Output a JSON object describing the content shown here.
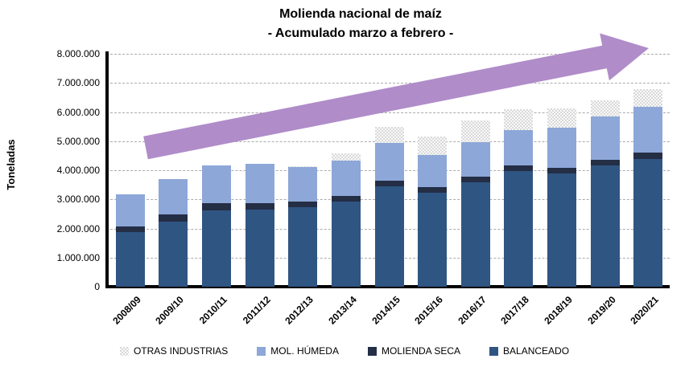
{
  "title": {
    "line1": "Molienda nacional de maíz",
    "line2": "- Acumulado marzo a febrero -"
  },
  "axis": {
    "y_label": "Toneladas",
    "yticks": [
      {
        "value": 0,
        "label": "0"
      },
      {
        "value": 1000000,
        "label": "1.000.000"
      },
      {
        "value": 2000000,
        "label": "2.000.000"
      },
      {
        "value": 3000000,
        "label": "3.000.000"
      },
      {
        "value": 4000000,
        "label": "4.000.000"
      },
      {
        "value": 5000000,
        "label": "5.000.000"
      },
      {
        "value": 6000000,
        "label": "6.000.000"
      },
      {
        "value": 7000000,
        "label": "7.000.000"
      },
      {
        "value": 8000000,
        "label": "8.000.000"
      }
    ]
  },
  "colors": {
    "balanceado": "#2f5582",
    "molienda_seca": "#242e45",
    "mol_humeda": "#8da7d8",
    "otras_industrias": "#d9d9d9",
    "arrow": "#b08cc9",
    "gridline": "#ababab",
    "axis": "#000000"
  },
  "chart_data": {
    "type": "bar",
    "stacked": true,
    "title": "Molienda nacional de maíz - Acumulado marzo a febrero -",
    "ylabel": "Toneladas",
    "xlabel": "",
    "ylim": [
      0,
      8000000
    ],
    "grid": "horizontal-dashed",
    "legend_position": "bottom",
    "categories": [
      "2008/09",
      "2009/10",
      "2010/11",
      "2011/12",
      "2012/13",
      "2013/14",
      "2014/15",
      "2015/16",
      "2016/17",
      "2017/18",
      "2018/19",
      "2019/20",
      "2020/21"
    ],
    "series": [
      {
        "name": "BALANCEADO",
        "fill": "#2f5582",
        "values": [
          1870000,
          2230000,
          2620000,
          2640000,
          2720000,
          2930000,
          3440000,
          3220000,
          3600000,
          3960000,
          3900000,
          4170000,
          4380000
        ]
      },
      {
        "name": "MOLIENDA SECA",
        "fill": "#242e45",
        "values": [
          200000,
          260000,
          250000,
          230000,
          200000,
          180000,
          200000,
          190000,
          190000,
          210000,
          180000,
          200000,
          240000
        ]
      },
      {
        "name": "MOL. HÚMEDA",
        "fill": "#8da7d8",
        "values": [
          1090000,
          1200000,
          1300000,
          1340000,
          1190000,
          1210000,
          1290000,
          1120000,
          1180000,
          1210000,
          1370000,
          1470000,
          1550000
        ]
      },
      {
        "name": "OTRAS INDUSTRIAS",
        "fill": "pat-gray",
        "values": [
          0,
          0,
          0,
          0,
          30000,
          250000,
          560000,
          620000,
          730000,
          710000,
          670000,
          550000,
          630000
        ]
      }
    ],
    "totals": [
      3160000,
      3690000,
      4170000,
      4210000,
      4140000,
      4570000,
      5490000,
      5150000,
      5700000,
      6090000,
      6120000,
      6390000,
      6800000
    ],
    "legend": {
      "order": [
        "OTRAS INDUSTRIAS",
        "MOL. HÚMEDA",
        "MOLIENDA SECA",
        "BALANCEADO"
      ]
    },
    "annotation": {
      "shape": "block-arrow",
      "direction": "up-right",
      "color": "#b08cc9"
    }
  }
}
